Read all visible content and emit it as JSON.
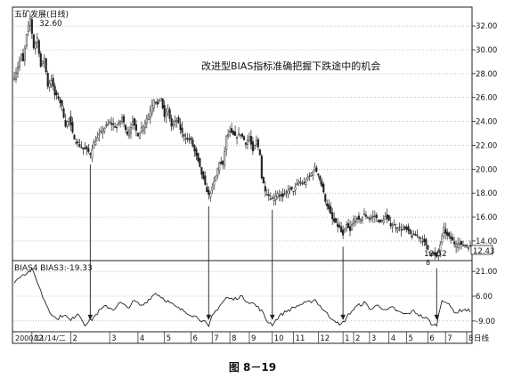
{
  "caption": "图 8－19",
  "chart_data": [
    {
      "type": "line",
      "title": "五矿发展(日线)",
      "annotation": "改进型BIAS指标准确把握下跌途中的机会",
      "ylim": [
        12.43,
        33.5
      ],
      "y_ticks": [
        14.0,
        16.0,
        18.0,
        20.0,
        22.0,
        24.0,
        26.0,
        28.0,
        30.0,
        32.0
      ],
      "last_price_label": "12.43",
      "high_label": "32.60",
      "low_label": "12.52",
      "low_marker": "8",
      "grid": true,
      "series": [
        {
          "values": [
            {
              "i": 0,
              "v": 27.8
            },
            {
              "i": 2,
              "v": 28.6
            },
            {
              "i": 4,
              "v": 29.5
            },
            {
              "i": 5,
              "v": 29.0
            },
            {
              "i": 7,
              "v": 31.2
            },
            {
              "i": 9,
              "v": 32.6
            },
            {
              "i": 11,
              "v": 30.2
            },
            {
              "i": 13,
              "v": 31.0
            },
            {
              "i": 15,
              "v": 28.6
            },
            {
              "i": 17,
              "v": 29.3
            },
            {
              "i": 19,
              "v": 27.0
            },
            {
              "i": 21,
              "v": 27.5
            },
            {
              "i": 23,
              "v": 26.2
            },
            {
              "i": 25,
              "v": 26.0
            },
            {
              "i": 27,
              "v": 25.2
            },
            {
              "i": 29,
              "v": 23.7
            },
            {
              "i": 31,
              "v": 24.2
            },
            {
              "i": 33,
              "v": 23.0
            },
            {
              "i": 35,
              "v": 22.3
            },
            {
              "i": 37,
              "v": 22.0
            },
            {
              "i": 39,
              "v": 21.7
            },
            {
              "i": 41,
              "v": 21.6
            },
            {
              "i": 43,
              "v": 21.3
            },
            {
              "i": 45,
              "v": 22.2
            },
            {
              "i": 47,
              "v": 22.6
            },
            {
              "i": 50,
              "v": 23.3
            },
            {
              "i": 54,
              "v": 23.9
            },
            {
              "i": 58,
              "v": 23.5
            },
            {
              "i": 61,
              "v": 24.3
            },
            {
              "i": 64,
              "v": 23.0
            },
            {
              "i": 67,
              "v": 23.9
            },
            {
              "i": 70,
              "v": 22.9
            },
            {
              "i": 73,
              "v": 23.7
            },
            {
              "i": 76,
              "v": 24.5
            },
            {
              "i": 79,
              "v": 25.9
            },
            {
              "i": 81,
              "v": 25.4
            },
            {
              "i": 83,
              "v": 26.0
            },
            {
              "i": 85,
              "v": 24.3
            },
            {
              "i": 87,
              "v": 25.0
            },
            {
              "i": 89,
              "v": 23.6
            },
            {
              "i": 92,
              "v": 24.1
            },
            {
              "i": 95,
              "v": 23.0
            },
            {
              "i": 98,
              "v": 22.5
            },
            {
              "i": 100,
              "v": 22.4
            },
            {
              "i": 102,
              "v": 21.5
            },
            {
              "i": 104,
              "v": 20.6
            },
            {
              "i": 106,
              "v": 19.6
            },
            {
              "i": 108,
              "v": 18.6
            },
            {
              "i": 110,
              "v": 17.8
            },
            {
              "i": 112,
              "v": 18.4
            },
            {
              "i": 114,
              "v": 19.4
            },
            {
              "i": 116,
              "v": 20.6
            },
            {
              "i": 118,
              "v": 20.3
            },
            {
              "i": 120,
              "v": 22.7
            },
            {
              "i": 122,
              "v": 23.1
            },
            {
              "i": 125,
              "v": 22.7
            },
            {
              "i": 128,
              "v": 23.0
            },
            {
              "i": 131,
              "v": 22.2
            },
            {
              "i": 133,
              "v": 22.7
            },
            {
              "i": 135,
              "v": 21.4
            },
            {
              "i": 137,
              "v": 22.4
            },
            {
              "i": 139,
              "v": 21.3
            },
            {
              "i": 140,
              "v": 19.3
            },
            {
              "i": 142,
              "v": 18.3
            },
            {
              "i": 144,
              "v": 17.8
            },
            {
              "i": 146,
              "v": 17.5
            },
            {
              "i": 149,
              "v": 18.0
            },
            {
              "i": 152,
              "v": 17.6
            },
            {
              "i": 155,
              "v": 18.3
            },
            {
              "i": 158,
              "v": 18.2
            },
            {
              "i": 161,
              "v": 18.9
            },
            {
              "i": 164,
              "v": 18.8
            },
            {
              "i": 167,
              "v": 19.4
            },
            {
              "i": 170,
              "v": 20.1
            },
            {
              "i": 172,
              "v": 19.6
            },
            {
              "i": 174,
              "v": 18.6
            },
            {
              "i": 176,
              "v": 17.4
            },
            {
              "i": 178,
              "v": 16.6
            },
            {
              "i": 180,
              "v": 15.8
            },
            {
              "i": 182,
              "v": 15.4
            },
            {
              "i": 184,
              "v": 15.1
            },
            {
              "i": 186,
              "v": 14.4
            },
            {
              "i": 188,
              "v": 15.3
            },
            {
              "i": 190,
              "v": 14.8
            },
            {
              "i": 192,
              "v": 15.8
            },
            {
              "i": 195,
              "v": 15.7
            },
            {
              "i": 198,
              "v": 16.2
            },
            {
              "i": 201,
              "v": 15.9
            },
            {
              "i": 204,
              "v": 16.1
            },
            {
              "i": 207,
              "v": 15.5
            },
            {
              "i": 210,
              "v": 16.0
            },
            {
              "i": 213,
              "v": 15.4
            },
            {
              "i": 216,
              "v": 15.2
            },
            {
              "i": 219,
              "v": 15.0
            },
            {
              "i": 222,
              "v": 14.9
            },
            {
              "i": 225,
              "v": 14.4
            },
            {
              "i": 228,
              "v": 14.5
            },
            {
              "i": 231,
              "v": 14.1
            },
            {
              "i": 234,
              "v": 13.3
            },
            {
              "i": 237,
              "v": 12.9
            },
            {
              "i": 239,
              "v": 12.6
            },
            {
              "i": 241,
              "v": 13.7
            },
            {
              "i": 243,
              "v": 15.0
            },
            {
              "i": 245,
              "v": 14.4
            },
            {
              "i": 247,
              "v": 14.2
            },
            {
              "i": 249,
              "v": 13.8
            },
            {
              "i": 251,
              "v": 13.9
            },
            {
              "i": 253,
              "v": 13.6
            },
            {
              "i": 255,
              "v": 13.7
            },
            {
              "i": 258,
              "v": 13.5
            }
          ]
        }
      ],
      "arrows_at_index": [
        43,
        110,
        146,
        186,
        239
      ]
    },
    {
      "type": "line",
      "title": "BIAS4  BIAS3:-19.33",
      "ylim": [
        -15.0,
        27.0
      ],
      "y_ticks": [
        -9.0,
        6.0,
        21.0
      ],
      "grid": true,
      "series": [
        {
          "values": [
            {
              "i": 0,
              "v": 14
            },
            {
              "i": 4,
              "v": 19
            },
            {
              "i": 7,
              "v": 20
            },
            {
              "i": 10,
              "v": 22
            },
            {
              "i": 13,
              "v": 15
            },
            {
              "i": 16,
              "v": 6
            },
            {
              "i": 20,
              "v": -3
            },
            {
              "i": 24,
              "v": -8
            },
            {
              "i": 28,
              "v": -5
            },
            {
              "i": 32,
              "v": -9
            },
            {
              "i": 36,
              "v": -4
            },
            {
              "i": 40,
              "v": -11
            },
            {
              "i": 44,
              "v": -8
            },
            {
              "i": 48,
              "v": -3
            },
            {
              "i": 52,
              "v": 0
            },
            {
              "i": 56,
              "v": -2
            },
            {
              "i": 60,
              "v": 2
            },
            {
              "i": 64,
              "v": -1
            },
            {
              "i": 68,
              "v": 3
            },
            {
              "i": 72,
              "v": 0
            },
            {
              "i": 76,
              "v": 4
            },
            {
              "i": 80,
              "v": 8
            },
            {
              "i": 84,
              "v": 5
            },
            {
              "i": 88,
              "v": 2
            },
            {
              "i": 92,
              "v": -1
            },
            {
              "i": 96,
              "v": -3
            },
            {
              "i": 100,
              "v": -5
            },
            {
              "i": 104,
              "v": -7
            },
            {
              "i": 108,
              "v": -10
            },
            {
              "i": 110,
              "v": -13
            },
            {
              "i": 112,
              "v": -6
            },
            {
              "i": 116,
              "v": 0
            },
            {
              "i": 120,
              "v": 5
            },
            {
              "i": 124,
              "v": 4
            },
            {
              "i": 128,
              "v": 6
            },
            {
              "i": 132,
              "v": 3
            },
            {
              "i": 136,
              "v": 1
            },
            {
              "i": 140,
              "v": -3
            },
            {
              "i": 143,
              "v": -9
            },
            {
              "i": 146,
              "v": -11
            },
            {
              "i": 150,
              "v": -6
            },
            {
              "i": 154,
              "v": -3
            },
            {
              "i": 158,
              "v": -1
            },
            {
              "i": 162,
              "v": 1
            },
            {
              "i": 166,
              "v": 2
            },
            {
              "i": 170,
              "v": 4
            },
            {
              "i": 174,
              "v": -1
            },
            {
              "i": 178,
              "v": -6
            },
            {
              "i": 182,
              "v": -9
            },
            {
              "i": 184,
              "v": -12
            },
            {
              "i": 186,
              "v": -10
            },
            {
              "i": 190,
              "v": -4
            },
            {
              "i": 194,
              "v": 0
            },
            {
              "i": 198,
              "v": 2
            },
            {
              "i": 202,
              "v": -2
            },
            {
              "i": 206,
              "v": 1
            },
            {
              "i": 210,
              "v": -3
            },
            {
              "i": 214,
              "v": -1
            },
            {
              "i": 218,
              "v": -4
            },
            {
              "i": 222,
              "v": -5
            },
            {
              "i": 226,
              "v": -3
            },
            {
              "i": 230,
              "v": -6
            },
            {
              "i": 234,
              "v": -8
            },
            {
              "i": 237,
              "v": -12
            },
            {
              "i": 239,
              "v": -11
            },
            {
              "i": 242,
              "v": 4
            },
            {
              "i": 244,
              "v": 3
            },
            {
              "i": 247,
              "v": -1
            },
            {
              "i": 250,
              "v": -4
            },
            {
              "i": 254,
              "v": -2
            },
            {
              "i": 258,
              "v": -3
            }
          ]
        }
      ]
    }
  ],
  "x_axis": {
    "start_label": "2000/11/14/二",
    "end_label": "日线",
    "ticks": [
      {
        "i": 10,
        "label": "12"
      },
      {
        "i": 32,
        "label": "2"
      },
      {
        "i": 54,
        "label": "3"
      },
      {
        "i": 70,
        "label": "4"
      },
      {
        "i": 85,
        "label": "5"
      },
      {
        "i": 100,
        "label": "6"
      },
      {
        "i": 112,
        "label": "7"
      },
      {
        "i": 122,
        "label": "8"
      },
      {
        "i": 133,
        "label": "9"
      },
      {
        "i": 146,
        "label": "10"
      },
      {
        "i": 158,
        "label": "11"
      },
      {
        "i": 172,
        "label": "12"
      },
      {
        "i": 186,
        "label": "1"
      },
      {
        "i": 192,
        "label": "2"
      },
      {
        "i": 201,
        "label": "3"
      },
      {
        "i": 212,
        "label": "4"
      },
      {
        "i": 222,
        "label": "5"
      },
      {
        "i": 234,
        "label": "6"
      },
      {
        "i": 244,
        "label": "7"
      },
      {
        "i": 256,
        "label": "8"
      }
    ]
  }
}
